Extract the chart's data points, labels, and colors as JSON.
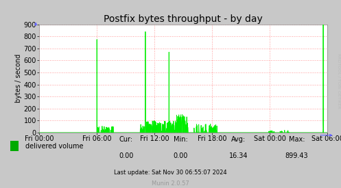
{
  "title": "Postfix bytes throughput - by day",
  "ylabel": "bytes / second",
  "background_color": "#C8C8C8",
  "plot_bg_color": "#FFFFFF",
  "grid_color": "#FF9999",
  "line_color": "#00EE00",
  "fill_color": "#00CC00",
  "ylim": [
    0,
    900
  ],
  "yticks": [
    0,
    100,
    200,
    300,
    400,
    500,
    600,
    700,
    800,
    900
  ],
  "xtick_labels": [
    "Fri 00:00",
    "Fri 06:00",
    "Fri 12:00",
    "Fri 18:00",
    "Sat 00:00",
    "Sat 06:00"
  ],
  "legend_label": "delivered volume",
  "legend_color": "#00AA00",
  "cur_label": "Cur:",
  "min_label": "Min:",
  "avg_label": "Avg:",
  "max_label": "Max:",
  "cur": "0.00",
  "min": "0.00",
  "avg": "16.34",
  "max": "899.43",
  "last_update": "Last update: Sat Nov 30 06:55:07 2024",
  "munin_version": "Munin 2.0.57",
  "rrdtool_text": "RRDTOOL / TOBI OETIKER",
  "title_fontsize": 10,
  "axis_fontsize": 7,
  "small_fontsize": 6,
  "legend_fontsize": 7
}
